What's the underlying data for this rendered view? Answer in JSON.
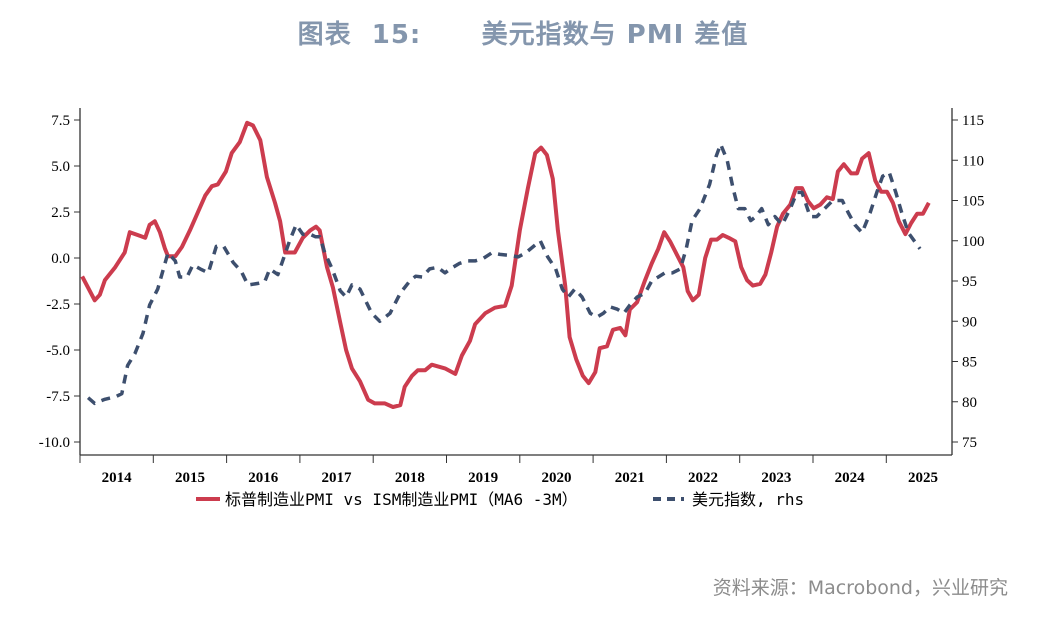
{
  "title": "图表  15:      美元指数与 PMI 差值",
  "source": "资料来源：Macrobond，兴业研究",
  "chart_data": {
    "type": "line",
    "title": "美元指数与 PMI 差值",
    "xlim": [
      2014,
      2025.9
    ],
    "x_tick_labels": [
      "2014",
      "2015",
      "2016",
      "2017",
      "2018",
      "2019",
      "2020",
      "2021",
      "2022",
      "2023",
      "2024",
      "2025"
    ],
    "y_left": {
      "lim": [
        -11,
        8.5
      ],
      "ticks": [
        7.5,
        5.0,
        2.5,
        0.0,
        -2.5,
        -5.0,
        -7.5,
        -10.0
      ],
      "tick_labels": [
        "7.5",
        "5.0",
        "2.5",
        "0.0",
        "-2.5",
        "-5.0",
        "-7.5",
        "-10.0"
      ]
    },
    "y_right": {
      "lim": [
        73.5,
        116.5
      ],
      "ticks": [
        115,
        110,
        105,
        100,
        95,
        90,
        85,
        80,
        75
      ],
      "tick_labels": [
        "115",
        "110",
        "105",
        "100",
        "95",
        "90",
        "85",
        "80",
        "75"
      ]
    },
    "grid": false,
    "legend_position": "bottom",
    "series": [
      {
        "name": "标普制造业PMI vs ISM制造业PMI（MA6 -3M）",
        "axis": "left",
        "color": "#cc3c4e",
        "style": "solid",
        "x": [
          2014.03,
          2014.2,
          2014.27,
          2014.34,
          2014.48,
          2014.61,
          2014.68,
          2014.82,
          2014.89,
          2014.95,
          2015.02,
          2015.09,
          2015.16,
          2015.2,
          2015.3,
          2015.39,
          2015.5,
          2015.61,
          2015.71,
          2015.8,
          2015.88,
          2015.99,
          2016.07,
          2016.18,
          2016.28,
          2016.36,
          2016.46,
          2016.55,
          2016.66,
          2016.73,
          2016.8,
          2016.93,
          2017.04,
          2017.14,
          2017.22,
          2017.27,
          2017.37,
          2017.45,
          2017.55,
          2017.63,
          2017.71,
          2017.82,
          2017.93,
          2018.02,
          2018.16,
          2018.27,
          2018.37,
          2018.43,
          2018.53,
          2018.61,
          2018.71,
          2018.8,
          2018.98,
          2019.12,
          2019.21,
          2019.32,
          2019.39,
          2019.53,
          2019.66,
          2019.8,
          2019.89,
          2020.0,
          2020.11,
          2020.21,
          2020.29,
          2020.37,
          2020.45,
          2020.52,
          2020.62,
          2020.68,
          2020.77,
          2020.86,
          2020.94,
          2021.03,
          2021.09,
          2021.19,
          2021.27,
          2021.37,
          2021.44,
          2021.5,
          2021.6,
          2021.71,
          2021.8,
          2021.89,
          2021.97,
          2022.05,
          2022.14,
          2022.23,
          2022.29,
          2022.36,
          2022.44,
          2022.53,
          2022.61,
          2022.69,
          2022.77,
          2022.85,
          2022.94,
          2023.02,
          2023.1,
          2023.18,
          2023.28,
          2023.35,
          2023.43,
          2023.51,
          2023.59,
          2023.69,
          2023.77,
          2023.85,
          2023.93,
          2024.01,
          2024.1,
          2024.19,
          2024.27,
          2024.34,
          2024.42,
          2024.52,
          2024.6,
          2024.67,
          2024.76,
          2024.85,
          2024.93,
          2025.01,
          2025.09,
          2025.17,
          2025.26,
          2025.34,
          2025.42,
          2025.5,
          2025.58
        ],
        "values": [
          -1.0,
          -2.3,
          -2.0,
          -1.2,
          -0.5,
          0.3,
          1.4,
          1.2,
          1.1,
          1.8,
          2.0,
          1.4,
          0.5,
          0.1,
          0.1,
          0.6,
          1.5,
          2.5,
          3.4,
          3.9,
          4.0,
          4.7,
          5.7,
          6.3,
          7.35,
          7.2,
          6.4,
          4.4,
          3.0,
          2.0,
          0.3,
          0.3,
          1.1,
          1.5,
          1.7,
          1.5,
          -0.5,
          -1.6,
          -3.5,
          -5.0,
          -6.0,
          -6.7,
          -7.7,
          -7.9,
          -7.9,
          -8.1,
          -8.0,
          -7.0,
          -6.4,
          -6.1,
          -6.1,
          -5.8,
          -6.0,
          -6.3,
          -5.3,
          -4.5,
          -3.6,
          -3.0,
          -2.7,
          -2.6,
          -1.5,
          1.5,
          3.8,
          5.7,
          6.0,
          5.6,
          4.3,
          1.5,
          -1.5,
          -4.3,
          -5.5,
          -6.4,
          -6.8,
          -6.2,
          -4.9,
          -4.8,
          -3.9,
          -3.8,
          -4.2,
          -2.8,
          -2.4,
          -1.2,
          -0.3,
          0.5,
          1.4,
          0.9,
          0.2,
          -0.5,
          -1.8,
          -2.3,
          -2.0,
          0.0,
          1.0,
          1.0,
          1.25,
          1.1,
          0.9,
          -0.5,
          -1.2,
          -1.5,
          -1.4,
          -0.9,
          0.3,
          1.7,
          2.4,
          2.9,
          3.8,
          3.8,
          3.1,
          2.7,
          2.9,
          3.3,
          3.2,
          4.7,
          5.1,
          4.6,
          4.6,
          5.4,
          5.7,
          4.2,
          3.6,
          3.6,
          3.0,
          2.0,
          1.3,
          1.9,
          2.4,
          2.4,
          3.0
        ]
      },
      {
        "name": "美元指数, rhs",
        "axis": "right",
        "color": "#3d4f6e",
        "style": "dashed",
        "x": [
          2014.11,
          2014.2,
          2014.34,
          2014.48,
          2014.57,
          2014.65,
          2014.75,
          2014.86,
          2014.95,
          2015.06,
          2015.2,
          2015.3,
          2015.36,
          2015.46,
          2015.54,
          2015.64,
          2015.75,
          2015.86,
          2015.96,
          2016.09,
          2016.2,
          2016.29,
          2016.43,
          2016.52,
          2016.59,
          2016.7,
          2016.86,
          2016.95,
          2017.04,
          2017.14,
          2017.21,
          2017.27,
          2017.34,
          2017.44,
          2017.55,
          2017.63,
          2017.71,
          2017.82,
          2017.98,
          2018.09,
          2018.23,
          2018.37,
          2018.5,
          2018.58,
          2018.67,
          2018.77,
          2018.88,
          2018.98,
          2019.05,
          2019.18,
          2019.29,
          2019.39,
          2019.5,
          2019.62,
          2019.73,
          2019.84,
          2019.98,
          2020.08,
          2020.28,
          2020.38,
          2020.49,
          2020.58,
          2020.66,
          2020.75,
          2020.85,
          2020.96,
          2021.05,
          2021.14,
          2021.23,
          2021.33,
          2021.42,
          2021.5,
          2021.6,
          2021.71,
          2021.8,
          2021.89,
          2021.98,
          2022.08,
          2022.19,
          2022.27,
          2022.35,
          2022.46,
          2022.59,
          2022.68,
          2022.74,
          2022.83,
          2022.91,
          2022.98,
          2023.07,
          2023.15,
          2023.22,
          2023.3,
          2023.39,
          2023.48,
          2023.58,
          2023.69,
          2023.78,
          2023.85,
          2023.96,
          2024.05,
          2024.16,
          2024.27,
          2024.4,
          2024.48,
          2024.57,
          2024.67,
          2024.78,
          2024.87,
          2024.95,
          2025.04,
          2025.13,
          2025.21,
          2025.3,
          2025.38,
          2025.46
        ],
        "values": [
          80.5,
          79.8,
          80.3,
          80.6,
          81,
          84.5,
          86,
          88.5,
          92,
          94,
          98.5,
          97.5,
          95.5,
          95.5,
          97,
          96.5,
          96,
          99.3,
          99.3,
          97.3,
          96.2,
          94.5,
          94.7,
          94.9,
          96.5,
          95.8,
          100,
          102,
          100.8,
          100.8,
          100.5,
          100.5,
          98.5,
          96.5,
          93.8,
          93,
          94.5,
          94,
          91,
          90,
          91,
          93.5,
          95,
          95.6,
          95.5,
          96.5,
          96.7,
          96,
          96.5,
          97.2,
          97.5,
          97.5,
          97.8,
          98.5,
          98.3,
          98.2,
          98,
          98.5,
          100,
          98,
          96.5,
          94,
          93,
          94,
          93,
          91,
          90.5,
          91,
          91.8,
          91.5,
          91,
          92,
          93,
          93.5,
          95,
          95.5,
          96,
          96,
          96.5,
          99,
          102.5,
          104,
          107,
          110.5,
          112,
          110,
          106.5,
          104,
          104,
          102.5,
          103,
          104,
          102,
          103,
          102,
          104,
          106,
          106,
          103,
          103,
          104,
          105,
          105,
          103.5,
          102,
          101,
          103.5,
          106,
          108,
          108.5,
          106,
          103.5,
          101,
          100,
          99
        ]
      }
    ]
  }
}
